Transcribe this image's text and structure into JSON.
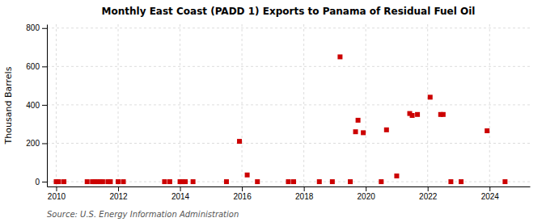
{
  "chart_data": {
    "type": "scatter",
    "title": "Monthly East Coast (PADD 1) Exports to Panama of Residual Fuel Oil",
    "ylabel": "Thousand Barrels",
    "source": "Source: U.S. Energy Information Administration",
    "color": "#cc0000",
    "marker": "square",
    "grid": true,
    "xlim": [
      2009.7,
      2025.3
    ],
    "ylim": [
      -25,
      820
    ],
    "xticks": [
      2010,
      2012,
      2014,
      2016,
      2018,
      2020,
      2022,
      2024
    ],
    "yticks": [
      0,
      200,
      400,
      600,
      800
    ],
    "x": [
      2010.0,
      2010.08,
      2010.25,
      2011.0,
      2011.17,
      2011.25,
      2011.33,
      2011.42,
      2011.5,
      2011.67,
      2011.75,
      2012.0,
      2012.17,
      2013.5,
      2013.67,
      2014.0,
      2014.08,
      2014.17,
      2014.42,
      2015.5,
      2015.92,
      2016.17,
      2016.5,
      2017.5,
      2017.67,
      2018.5,
      2018.92,
      2019.17,
      2019.5,
      2019.67,
      2019.75,
      2019.92,
      2020.5,
      2020.67,
      2021.0,
      2021.42,
      2021.5,
      2021.67,
      2022.08,
      2022.42,
      2022.5,
      2022.75,
      2023.08,
      2023.92,
      2024.5
    ],
    "values": [
      0,
      0,
      0,
      0,
      0,
      0,
      0,
      0,
      0,
      0,
      0,
      0,
      0,
      0,
      0,
      0,
      0,
      0,
      0,
      0,
      210,
      35,
      0,
      0,
      0,
      0,
      0,
      650,
      0,
      260,
      320,
      255,
      0,
      270,
      30,
      355,
      345,
      350,
      440,
      350,
      350,
      0,
      0,
      265,
      0
    ]
  }
}
